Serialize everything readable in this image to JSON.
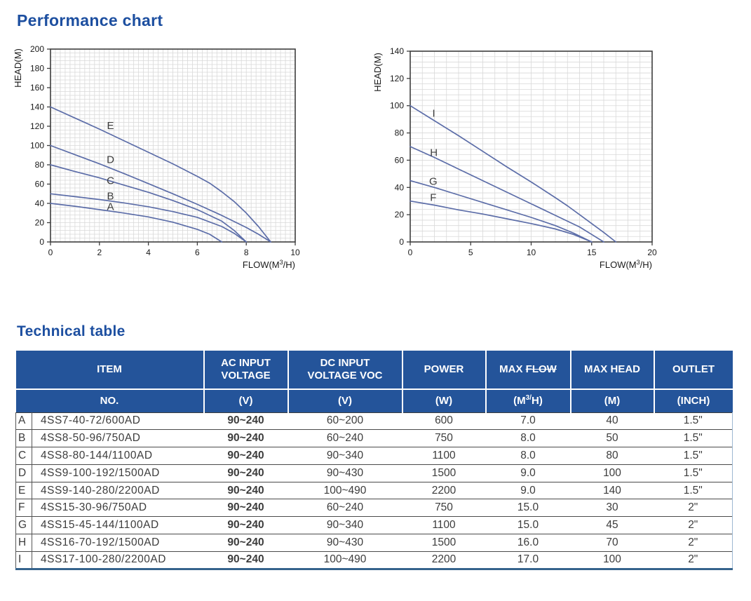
{
  "titles": {
    "performance": "Performance chart",
    "technical": "Technical table"
  },
  "colors": {
    "title_blue": "#1d4fa0",
    "header_bg": "#24549a",
    "curve": "#5c6da8",
    "grid_minor": "#d9d9d9",
    "frame": "#3d3d3d",
    "body_text": "#3c3c3c"
  },
  "chart_data": [
    {
      "type": "line",
      "title": "",
      "ylabel": "HEAD(M)",
      "xlabel_parts": [
        "FLOW(M",
        "3",
        "/H)"
      ],
      "xlim": [
        0,
        10
      ],
      "ylim": [
        0,
        200
      ],
      "x_tick_step": 2,
      "y_tick_step": 20,
      "x_minor_per_major": 10,
      "y_minor_per_major": 5,
      "grid": true,
      "legend_position": "inline-labels",
      "series": [
        {
          "name": "A",
          "label_at": [
            2.45,
            33
          ],
          "points": [
            [
              0,
              40
            ],
            [
              1,
              37
            ],
            [
              2,
              33.5
            ],
            [
              3,
              30
            ],
            [
              4,
              26
            ],
            [
              5,
              20.5
            ],
            [
              6,
              13
            ],
            [
              6.5,
              8
            ],
            [
              7,
              0
            ]
          ]
        },
        {
          "name": "B",
          "label_at": [
            2.45,
            44
          ],
          "points": [
            [
              0,
              50
            ],
            [
              1,
              47
            ],
            [
              2,
              44
            ],
            [
              3,
              40.5
            ],
            [
              4,
              36.5
            ],
            [
              5,
              31.5
            ],
            [
              6,
              25.5
            ],
            [
              7,
              16
            ],
            [
              7.5,
              9
            ],
            [
              8,
              0
            ]
          ]
        },
        {
          "name": "C",
          "label_at": [
            2.45,
            60
          ],
          "points": [
            [
              0,
              80
            ],
            [
              1,
              73
            ],
            [
              2,
              66.5
            ],
            [
              3,
              59
            ],
            [
              4,
              51.5
            ],
            [
              5,
              43
            ],
            [
              6,
              33.5
            ],
            [
              7,
              21.5
            ],
            [
              7.5,
              12
            ],
            [
              8,
              0
            ]
          ]
        },
        {
          "name": "D",
          "label_at": [
            2.45,
            82
          ],
          "points": [
            [
              0,
              100
            ],
            [
              1,
              90.5
            ],
            [
              2,
              81
            ],
            [
              3,
              71
            ],
            [
              4,
              60.5
            ],
            [
              5,
              50
            ],
            [
              6,
              39
            ],
            [
              7,
              27.5
            ],
            [
              8,
              15
            ],
            [
              8.5,
              8
            ],
            [
              9,
              0
            ]
          ]
        },
        {
          "name": "E",
          "label_at": [
            2.45,
            117
          ],
          "points": [
            [
              0,
              140
            ],
            [
              1,
              128.5
            ],
            [
              2,
              117
            ],
            [
              3,
              105
            ],
            [
              4,
              93
            ],
            [
              5,
              81
            ],
            [
              6,
              68
            ],
            [
              6.5,
              61
            ],
            [
              7,
              52
            ],
            [
              7.5,
              42
            ],
            [
              8,
              30
            ],
            [
              8.5,
              16
            ],
            [
              9,
              0
            ]
          ]
        }
      ]
    },
    {
      "type": "line",
      "title": "",
      "ylabel": "HEAD(M)",
      "xlabel_parts": [
        "FLOW(M",
        "3",
        "/H)"
      ],
      "xlim": [
        0,
        20
      ],
      "ylim": [
        0,
        140
      ],
      "x_tick_step": 5,
      "y_tick_step": 20,
      "x_minor_per_major": 5,
      "y_minor_per_major": 5,
      "grid": true,
      "legend_position": "inline-labels",
      "series": [
        {
          "name": "F",
          "label_at": [
            1.9,
            30
          ],
          "points": [
            [
              0,
              30
            ],
            [
              2,
              27
            ],
            [
              4,
              23.5
            ],
            [
              6,
              20.5
            ],
            [
              8,
              17
            ],
            [
              10,
              13.5
            ],
            [
              12,
              9.5
            ],
            [
              13.5,
              5.5
            ],
            [
              15,
              0
            ]
          ]
        },
        {
          "name": "G",
          "label_at": [
            1.9,
            42
          ],
          "points": [
            [
              0,
              45
            ],
            [
              2,
              40
            ],
            [
              4,
              34.5
            ],
            [
              6,
              29
            ],
            [
              8,
              23.5
            ],
            [
              10,
              18
            ],
            [
              12,
              12
            ],
            [
              13.5,
              6.5
            ],
            [
              15,
              0
            ]
          ]
        },
        {
          "name": "H",
          "label_at": [
            1.95,
            63
          ],
          "points": [
            [
              0,
              70
            ],
            [
              2,
              62
            ],
            [
              4,
              53.5
            ],
            [
              6,
              45
            ],
            [
              8,
              36.5
            ],
            [
              10,
              28
            ],
            [
              12,
              19.5
            ],
            [
              14,
              11
            ],
            [
              15,
              5.5
            ],
            [
              16,
              0
            ]
          ]
        },
        {
          "name": "I",
          "label_at": [
            1.95,
            92
          ],
          "points": [
            [
              0,
              100
            ],
            [
              2,
              89
            ],
            [
              4,
              78
            ],
            [
              6,
              66.5
            ],
            [
              8,
              55
            ],
            [
              10,
              44
            ],
            [
              12,
              32.5
            ],
            [
              13,
              26.5
            ],
            [
              14,
              20
            ],
            [
              15,
              13.5
            ],
            [
              16,
              7
            ],
            [
              17,
              0
            ]
          ]
        }
      ]
    }
  ],
  "table": {
    "header": {
      "item": {
        "line1": "ITEM",
        "line2": "NO."
      },
      "ac": {
        "line1a": "AC INPUT",
        "line1b": "VOLTAGE",
        "line2": "(V)"
      },
      "dc": {
        "line1a": "DC INPUT",
        "line1b": "VOLTAGE VOC",
        "line2": "(V)"
      },
      "power": {
        "line1": "POWER",
        "line2": "(W)"
      },
      "maxflow": {
        "prefix": "MAX ",
        "struck": "FLOW",
        "unit_pre": "(M",
        "unit_sup": "3/",
        "unit_post": "H)"
      },
      "maxhead": {
        "line1": "MAX HEAD",
        "line2": "(M)"
      },
      "outlet": {
        "line1": "OUTLET",
        "line2": "(INCH)"
      }
    },
    "rows": [
      {
        "letter": "A",
        "model": "4SS7-40-72/600AD",
        "ac": "90~240",
        "dc": "60~200",
        "power": "600",
        "max_flow": "7.0",
        "max_head": "40",
        "outlet": "1.5\""
      },
      {
        "letter": "B",
        "model": "4SS8-50-96/750AD",
        "ac": "90~240",
        "dc": "60~240",
        "power": "750",
        "max_flow": "8.0",
        "max_head": "50",
        "outlet": "1.5\""
      },
      {
        "letter": "C",
        "model": "4SS8-80-144/1100AD",
        "ac": "90~240",
        "dc": "90~340",
        "power": "1100",
        "max_flow": "8.0",
        "max_head": "80",
        "outlet": "1.5\""
      },
      {
        "letter": "D",
        "model": "4SS9-100-192/1500AD",
        "ac": "90~240",
        "dc": "90~430",
        "power": "1500",
        "max_flow": "9.0",
        "max_head": "100",
        "outlet": "1.5\""
      },
      {
        "letter": "E",
        "model": "4SS9-140-280/2200AD",
        "ac": "90~240",
        "dc": "100~490",
        "power": "2200",
        "max_flow": "9.0",
        "max_head": "140",
        "outlet": "1.5\""
      },
      {
        "letter": "F",
        "model": "4SS15-30-96/750AD",
        "ac": "90~240",
        "dc": "60~240",
        "power": "750",
        "max_flow": "15.0",
        "max_head": "30",
        "outlet": "2\""
      },
      {
        "letter": "G",
        "model": "4SS15-45-144/1100AD",
        "ac": "90~240",
        "dc": "90~340",
        "power": "1100",
        "max_flow": "15.0",
        "max_head": "45",
        "outlet": "2\""
      },
      {
        "letter": "H",
        "model": "4SS16-70-192/1500AD",
        "ac": "90~240",
        "dc": "90~430",
        "power": "1500",
        "max_flow": "16.0",
        "max_head": "70",
        "outlet": "2\""
      },
      {
        "letter": "I",
        "model": "4SS17-100-280/2200AD",
        "ac": "90~240",
        "dc": "100~490",
        "power": "2200",
        "max_flow": "17.0",
        "max_head": "100",
        "outlet": "2\""
      }
    ]
  }
}
